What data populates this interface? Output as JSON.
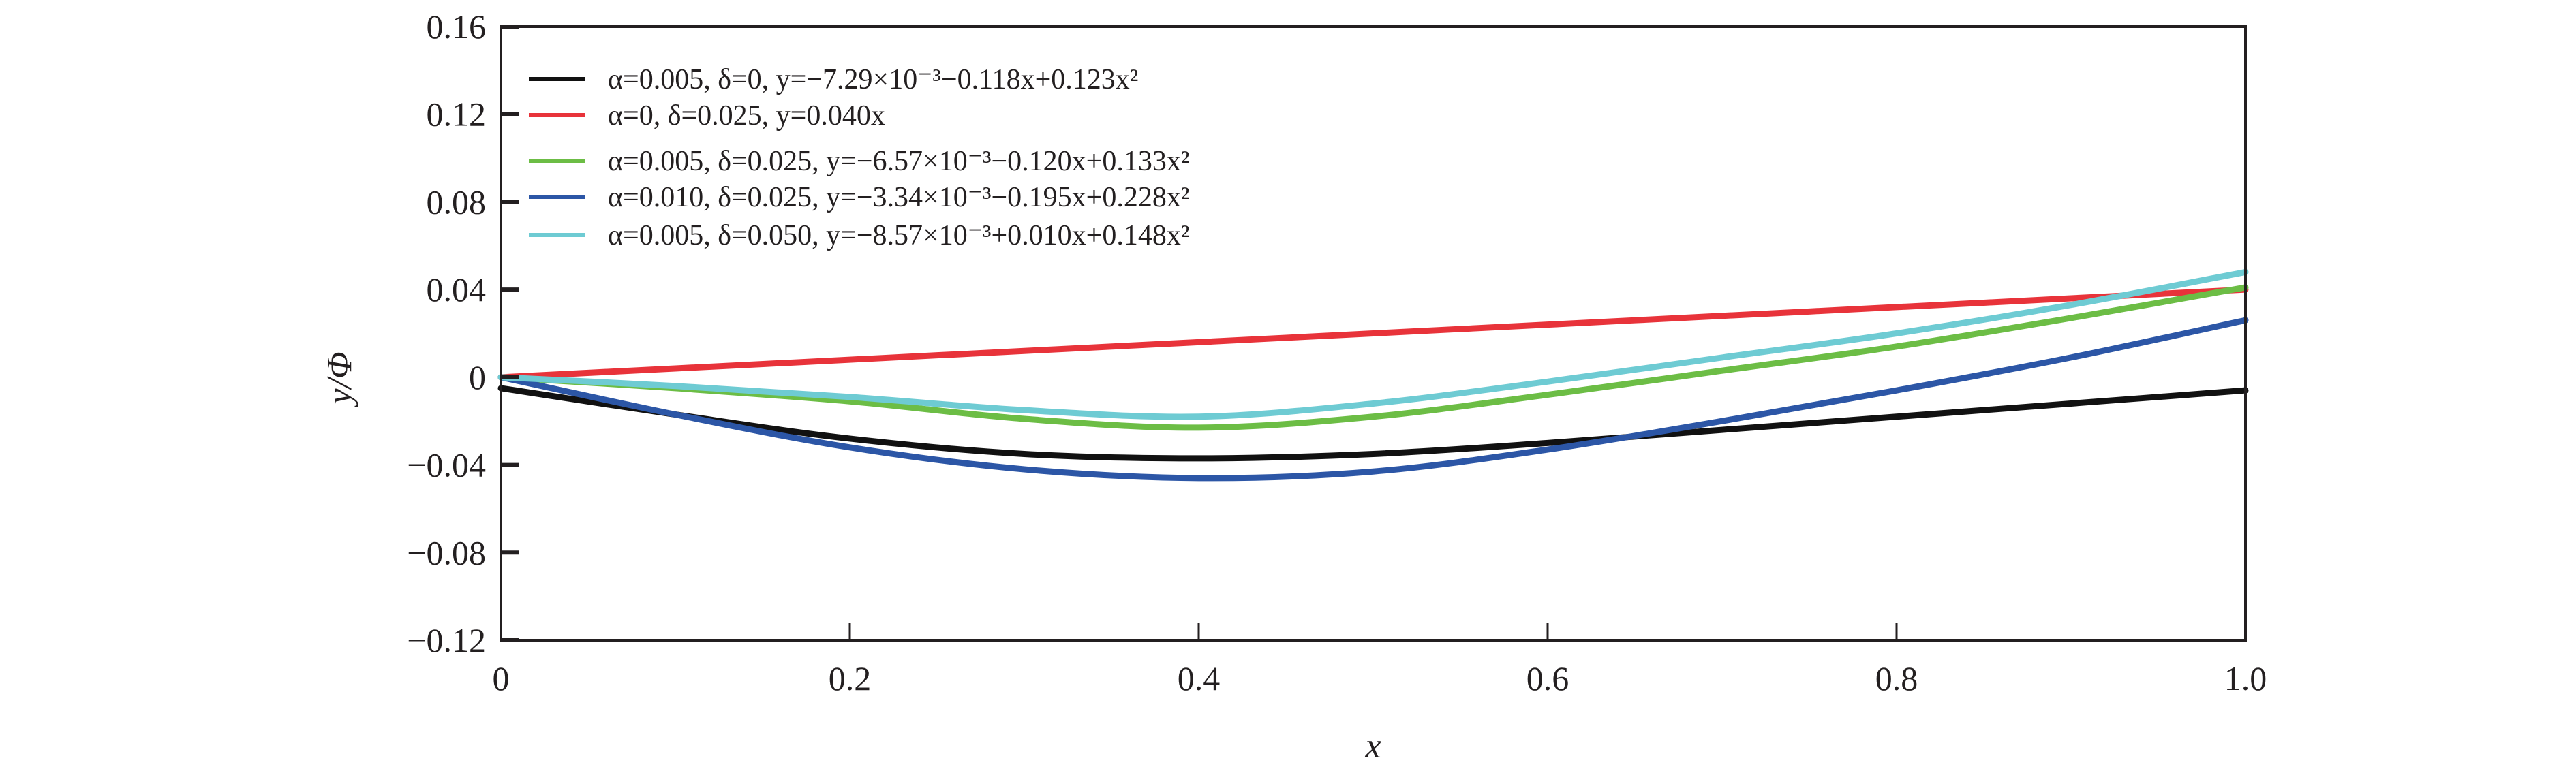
{
  "chart_data": {
    "type": "line",
    "xlabel": "x",
    "ylabel": "y/Φ",
    "xlim": [
      0,
      1.0
    ],
    "ylim": [
      -0.12,
      0.16
    ],
    "x_ticks": [
      "0",
      "0.2",
      "0.4",
      "0.6",
      "0.8",
      "1.0"
    ],
    "y_ticks": [
      "0.16",
      "0.12",
      "0.08",
      "0.04",
      "0",
      "−0.04",
      "−0.08",
      "−0.12"
    ],
    "grid": false,
    "legend_position": "top-left",
    "x": [
      0,
      0.1,
      0.2,
      0.3,
      0.4,
      0.5,
      0.6,
      0.7,
      0.8,
      0.9,
      1.0
    ],
    "series": [
      {
        "name": "α=0.005, δ=0, y=−7.29×10⁻³−0.118x+0.123x²",
        "color": "#111111",
        "values": [
          -0.005,
          -0.017,
          -0.028,
          -0.035,
          -0.037,
          -0.035,
          -0.03,
          -0.024,
          -0.018,
          -0.012,
          -0.006
        ]
      },
      {
        "name": "α=0, δ=0.025, y=0.040x",
        "color": "#e8333a",
        "values": [
          0,
          0.004,
          0.008,
          0.012,
          0.016,
          0.02,
          0.024,
          0.028,
          0.032,
          0.036,
          0.04
        ]
      },
      {
        "name": "α=0.005, δ=0.025, y=−6.57×10⁻³−0.120x+0.133x²",
        "color": "#6cbd45",
        "values": [
          0,
          -0.005,
          -0.011,
          -0.019,
          -0.023,
          -0.018,
          -0.008,
          0.003,
          0.014,
          0.027,
          0.041
        ]
      },
      {
        "name": "α=0.010, δ=0.025, y=−3.34×10⁻³−0.195x+0.228x²",
        "color": "#2c56a6",
        "values": [
          0,
          -0.017,
          -0.032,
          -0.042,
          -0.046,
          -0.043,
          -0.033,
          -0.02,
          -0.006,
          0.009,
          0.026
        ]
      },
      {
        "name": "α=0.005, δ=0.050, y=−8.57×10⁻³+0.010x+0.148x²",
        "color": "#6ecbd3",
        "values": [
          0,
          -0.004,
          -0.009,
          -0.015,
          -0.018,
          -0.012,
          -0.002,
          0.009,
          0.02,
          0.033,
          0.048
        ]
      }
    ]
  }
}
